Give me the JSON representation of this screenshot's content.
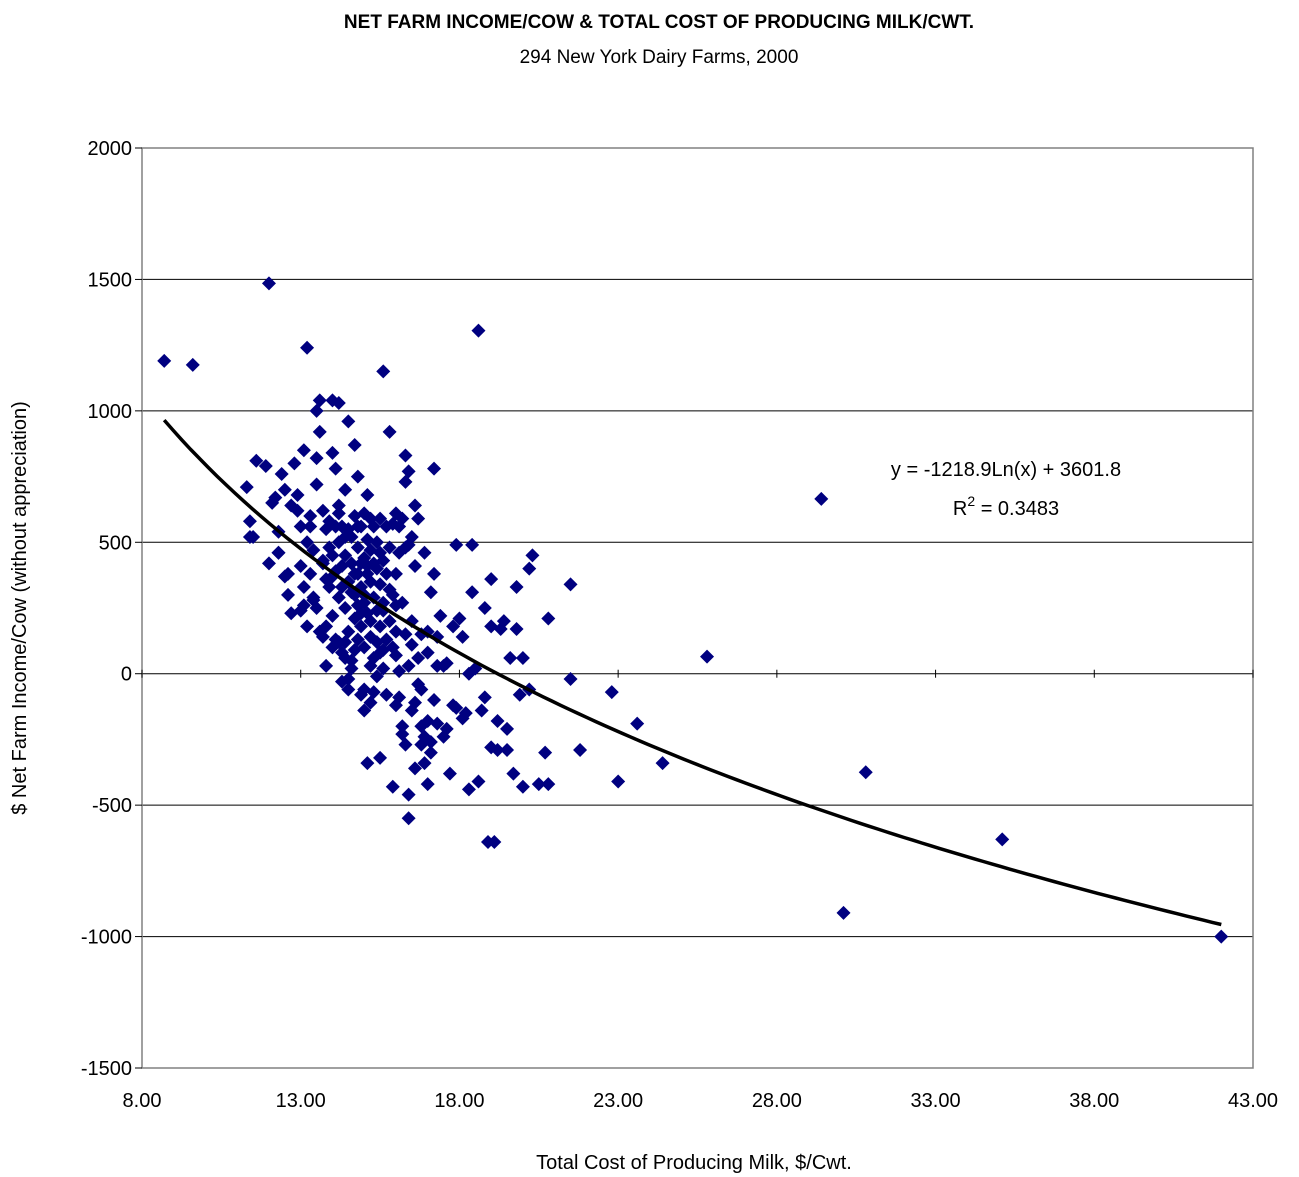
{
  "chart_data": {
    "type": "scatter",
    "title": "NET FARM INCOME/COW & TOTAL COST OF PRODUCING MILK/CWT.",
    "subtitle": "294 New York Dairy Farms, 2000",
    "xlabel": "Total Cost of Producing Milk, $/Cwt.",
    "ylabel": "$ Net Farm Income/Cow (without appreciation)",
    "xlim": [
      8,
      43
    ],
    "ylim": [
      -1500,
      2000
    ],
    "x_ticks": [
      "8.00",
      "13.00",
      "18.00",
      "23.00",
      "28.00",
      "33.00",
      "38.00",
      "43.00"
    ],
    "y_ticks": [
      "2000",
      "1500",
      "1000",
      "500",
      "0",
      "-500",
      "-1000",
      "-1500"
    ],
    "grid": "horizontal",
    "marker_color": "#000080",
    "trendline": {
      "type": "logarithmic",
      "a": -1218.9,
      "b": 3601.8,
      "x_range": [
        8.7,
        42
      ],
      "color": "#000000",
      "equation_label": "y = -1218.9Ln(x) + 3601.8",
      "r2_prefix": "R",
      "r2_sup": "2",
      "r2_value": " = 0.3483"
    },
    "points": [
      [
        8.7,
        1190
      ],
      [
        9.6,
        1175
      ],
      [
        12.0,
        1485
      ],
      [
        13.2,
        1240
      ],
      [
        18.6,
        1305
      ],
      [
        15.6,
        1150
      ],
      [
        29.4,
        665
      ],
      [
        25.8,
        65
      ],
      [
        30.1,
        -910
      ],
      [
        30.8,
        -375
      ],
      [
        35.1,
        -630
      ],
      [
        42.0,
        -1000
      ],
      [
        11.3,
        710
      ],
      [
        11.4,
        580
      ],
      [
        11.5,
        520
      ],
      [
        11.6,
        810
      ],
      [
        11.9,
        790
      ],
      [
        12.1,
        650
      ],
      [
        12.2,
        670
      ],
      [
        12.3,
        540
      ],
      [
        12.3,
        460
      ],
      [
        12.4,
        760
      ],
      [
        12.5,
        700
      ],
      [
        12.6,
        300
      ],
      [
        12.6,
        380
      ],
      [
        12.7,
        640
      ],
      [
        12.8,
        800
      ],
      [
        12.9,
        680
      ],
      [
        13.0,
        410
      ],
      [
        13.0,
        240
      ],
      [
        13.1,
        850
      ],
      [
        13.1,
        260
      ],
      [
        13.2,
        180
      ],
      [
        13.3,
        600
      ],
      [
        13.3,
        560
      ],
      [
        13.4,
        280
      ],
      [
        13.4,
        470
      ],
      [
        13.5,
        1000
      ],
      [
        13.5,
        820
      ],
      [
        13.5,
        720
      ],
      [
        13.6,
        1040
      ],
      [
        13.6,
        920
      ],
      [
        13.7,
        620
      ],
      [
        13.7,
        420
      ],
      [
        13.7,
        140
      ],
      [
        13.8,
        550
      ],
      [
        13.8,
        360
      ],
      [
        13.8,
        180
      ],
      [
        13.9,
        580
      ],
      [
        13.9,
        330
      ],
      [
        14.0,
        1040
      ],
      [
        14.0,
        840
      ],
      [
        14.0,
        450
      ],
      [
        14.0,
        220
      ],
      [
        14.1,
        780
      ],
      [
        14.1,
        560
      ],
      [
        14.1,
        390
      ],
      [
        14.2,
        1030
      ],
      [
        14.2,
        640
      ],
      [
        14.2,
        500
      ],
      [
        14.2,
        290
      ],
      [
        14.2,
        120
      ],
      [
        14.3,
        560
      ],
      [
        14.3,
        410
      ],
      [
        14.3,
        80
      ],
      [
        14.3,
        -30
      ],
      [
        14.4,
        700
      ],
      [
        14.4,
        450
      ],
      [
        14.4,
        250
      ],
      [
        14.4,
        60
      ],
      [
        14.5,
        960
      ],
      [
        14.5,
        550
      ],
      [
        14.5,
        350
      ],
      [
        14.5,
        160
      ],
      [
        14.5,
        -20
      ],
      [
        14.6,
        420
      ],
      [
        14.6,
        310
      ],
      [
        14.6,
        20
      ],
      [
        14.7,
        870
      ],
      [
        14.7,
        600
      ],
      [
        14.7,
        380
      ],
      [
        14.7,
        210
      ],
      [
        14.7,
        90
      ],
      [
        14.8,
        750
      ],
      [
        14.8,
        480
      ],
      [
        14.8,
        260
      ],
      [
        14.8,
        130
      ],
      [
        14.9,
        560
      ],
      [
        14.9,
        420
      ],
      [
        14.9,
        330
      ],
      [
        14.9,
        180
      ],
      [
        14.9,
        -80
      ],
      [
        15.0,
        610
      ],
      [
        15.0,
        440
      ],
      [
        15.0,
        270
      ],
      [
        15.0,
        100
      ],
      [
        15.0,
        -140
      ],
      [
        15.1,
        680
      ],
      [
        15.1,
        510
      ],
      [
        15.1,
        380
      ],
      [
        15.1,
        230
      ],
      [
        15.1,
        -340
      ],
      [
        15.2,
        590
      ],
      [
        15.2,
        470
      ],
      [
        15.2,
        350
      ],
      [
        15.2,
        140
      ],
      [
        15.2,
        -110
      ],
      [
        15.3,
        560
      ],
      [
        15.3,
        420
      ],
      [
        15.3,
        290
      ],
      [
        15.3,
        60
      ],
      [
        15.4,
        500
      ],
      [
        15.4,
        400
      ],
      [
        15.4,
        240
      ],
      [
        15.4,
        -10
      ],
      [
        15.5,
        590
      ],
      [
        15.5,
        460
      ],
      [
        15.5,
        340
      ],
      [
        15.5,
        180
      ],
      [
        15.5,
        -320
      ],
      [
        15.6,
        430
      ],
      [
        15.6,
        270
      ],
      [
        15.6,
        90
      ],
      [
        15.7,
        560
      ],
      [
        15.7,
        380
      ],
      [
        15.7,
        130
      ],
      [
        15.7,
        -80
      ],
      [
        15.8,
        920
      ],
      [
        15.8,
        480
      ],
      [
        15.8,
        200
      ],
      [
        15.9,
        570
      ],
      [
        15.9,
        300
      ],
      [
        15.9,
        -430
      ],
      [
        16.0,
        610
      ],
      [
        16.0,
        260
      ],
      [
        16.0,
        70
      ],
      [
        16.0,
        -120
      ],
      [
        16.1,
        560
      ],
      [
        16.1,
        460
      ],
      [
        16.1,
        -90
      ],
      [
        16.2,
        590
      ],
      [
        16.2,
        270
      ],
      [
        16.2,
        -200
      ],
      [
        16.3,
        830
      ],
      [
        16.3,
        730
      ],
      [
        16.3,
        150
      ],
      [
        16.3,
        -270
      ],
      [
        16.4,
        770
      ],
      [
        16.4,
        490
      ],
      [
        16.4,
        30
      ],
      [
        16.4,
        -460
      ],
      [
        16.4,
        -550
      ],
      [
        16.5,
        520
      ],
      [
        16.5,
        200
      ],
      [
        16.5,
        -140
      ],
      [
        16.6,
        640
      ],
      [
        16.6,
        410
      ],
      [
        16.6,
        -360
      ],
      [
        16.7,
        590
      ],
      [
        16.7,
        60
      ],
      [
        16.7,
        -40
      ],
      [
        16.8,
        150
      ],
      [
        16.8,
        -200
      ],
      [
        16.8,
        -270
      ],
      [
        16.9,
        460
      ],
      [
        16.9,
        -240
      ],
      [
        17.0,
        160
      ],
      [
        17.0,
        80
      ],
      [
        17.0,
        -180
      ],
      [
        17.0,
        -420
      ],
      [
        17.1,
        310
      ],
      [
        17.1,
        -300
      ],
      [
        17.2,
        780
      ],
      [
        17.2,
        380
      ],
      [
        17.2,
        -100
      ],
      [
        17.3,
        30
      ],
      [
        17.3,
        -190
      ],
      [
        17.4,
        220
      ],
      [
        17.5,
        30
      ],
      [
        17.5,
        -240
      ],
      [
        17.6,
        -210
      ],
      [
        17.7,
        -380
      ],
      [
        17.8,
        180
      ],
      [
        17.8,
        -120
      ],
      [
        17.9,
        490
      ],
      [
        17.9,
        -130
      ],
      [
        18.0,
        210
      ],
      [
        18.1,
        140
      ],
      [
        18.2,
        -150
      ],
      [
        18.3,
        -440
      ],
      [
        18.4,
        490
      ],
      [
        18.4,
        310
      ],
      [
        18.5,
        20
      ],
      [
        18.6,
        -410
      ],
      [
        18.7,
        -140
      ],
      [
        18.8,
        250
      ],
      [
        18.9,
        -640
      ],
      [
        19.0,
        360
      ],
      [
        19.0,
        180
      ],
      [
        19.0,
        -280
      ],
      [
        19.1,
        -640
      ],
      [
        19.2,
        -290
      ],
      [
        19.3,
        170
      ],
      [
        19.4,
        200
      ],
      [
        19.5,
        -290
      ],
      [
        19.6,
        60
      ],
      [
        19.7,
        -380
      ],
      [
        19.8,
        330
      ],
      [
        19.8,
        170
      ],
      [
        19.9,
        -80
      ],
      [
        20.0,
        60
      ],
      [
        20.0,
        -430
      ],
      [
        20.2,
        400
      ],
      [
        20.3,
        450
      ],
      [
        20.5,
        -420
      ],
      [
        20.7,
        -300
      ],
      [
        20.8,
        -420
      ],
      [
        20.8,
        210
      ],
      [
        21.5,
        340
      ],
      [
        21.5,
        -20
      ],
      [
        21.8,
        -290
      ],
      [
        22.8,
        -70
      ],
      [
        23.0,
        -410
      ],
      [
        23.6,
        -190
      ],
      [
        24.4,
        -340
      ],
      [
        11.4,
        520
      ],
      [
        12.0,
        420
      ],
      [
        12.3,
        460
      ],
      [
        12.9,
        620
      ],
      [
        13.3,
        380
      ],
      [
        13.6,
        160
      ],
      [
        13.9,
        480
      ],
      [
        14.1,
        130
      ],
      [
        14.4,
        120
      ],
      [
        14.6,
        520
      ],
      [
        14.8,
        380
      ],
      [
        15.0,
        300
      ],
      [
        15.2,
        200
      ],
      [
        15.4,
        120
      ],
      [
        15.6,
        20
      ],
      [
        15.9,
        100
      ],
      [
        16.0,
        160
      ],
      [
        16.3,
        480
      ],
      [
        16.5,
        110
      ],
      [
        16.8,
        -60
      ],
      [
        17.3,
        140
      ],
      [
        17.6,
        40
      ],
      [
        18.1,
        -170
      ],
      [
        18.8,
        -90
      ],
      [
        19.5,
        -210
      ],
      [
        20.2,
        -60
      ],
      [
        12.7,
        230
      ],
      [
        13.1,
        330
      ],
      [
        13.4,
        290
      ],
      [
        13.7,
        430
      ],
      [
        14.0,
        100
      ],
      [
        14.3,
        330
      ],
      [
        14.6,
        50
      ],
      [
        14.9,
        230
      ],
      [
        15.1,
        410
      ],
      [
        15.3,
        -70
      ],
      [
        15.8,
        320
      ],
      [
        16.1,
        10
      ],
      [
        12.5,
        370
      ],
      [
        13.2,
        500
      ],
      [
        13.8,
        30
      ],
      [
        14.2,
        610
      ],
      [
        14.5,
        -60
      ],
      [
        14.8,
        560
      ],
      [
        15.2,
        30
      ],
      [
        15.6,
        240
      ],
      [
        16.2,
        -230
      ],
      [
        16.6,
        -110
      ],
      [
        17.1,
        -260
      ],
      [
        18.3,
        0
      ],
      [
        13.0,
        560
      ],
      [
        13.5,
        250
      ],
      [
        14.0,
        370
      ],
      [
        14.4,
        520
      ],
      [
        14.7,
        300
      ],
      [
        15.0,
        -60
      ],
      [
        15.5,
        80
      ],
      [
        16.0,
        380
      ],
      [
        16.9,
        -340
      ],
      [
        19.2,
        -180
      ]
    ]
  }
}
